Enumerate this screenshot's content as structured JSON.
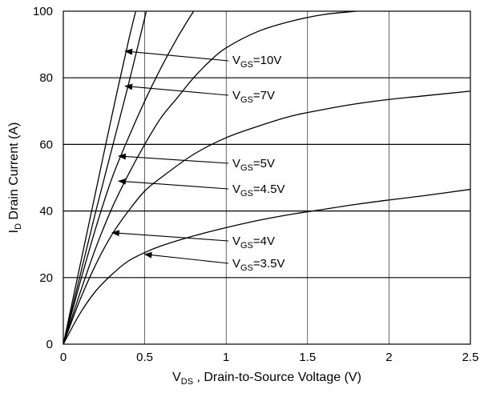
{
  "chart_data": {
    "type": "line",
    "xlabel": {
      "main": "V",
      "sub": "DS",
      "rest": " , Drain-to-Source  Voltage (V)"
    },
    "ylabel": {
      "main": "I",
      "sub": "D",
      "rest": " Drain Current  (A)"
    },
    "xlim": [
      0,
      2.5
    ],
    "ylim": [
      0,
      100
    ],
    "x_ticks": [
      0,
      0.5,
      1,
      1.5,
      2,
      2.5
    ],
    "x_tick_labels": [
      "0",
      "0.5",
      "1",
      "1.5",
      "2",
      "2.5"
    ],
    "y_ticks": [
      0,
      20,
      40,
      60,
      80,
      100
    ],
    "y_tick_labels": [
      "0",
      "20",
      "40",
      "60",
      "80",
      "100"
    ],
    "grid": true,
    "series": [
      {
        "name": "VGS=10V",
        "x": [
          0,
          0.1,
          0.2,
          0.3,
          0.4,
          0.45
        ],
        "y": [
          0,
          23,
          46,
          69,
          91,
          101
        ]
      },
      {
        "name": "VGS=7V",
        "x": [
          0,
          0.1,
          0.2,
          0.3,
          0.4,
          0.5,
          0.51
        ],
        "y": [
          0,
          20,
          40,
          59,
          78,
          98,
          100
        ]
      },
      {
        "name": "VGS=5V",
        "x": [
          0,
          0.1,
          0.2,
          0.3,
          0.4,
          0.5,
          0.6,
          0.7,
          0.8
        ],
        "y": [
          0,
          18,
          35,
          50,
          62,
          73,
          83,
          92,
          100
        ]
      },
      {
        "name": "VGS=4.5V",
        "x": [
          0,
          0.1,
          0.2,
          0.3,
          0.4,
          0.5,
          0.6,
          0.7,
          0.8,
          0.9,
          1.0,
          1.2,
          1.4,
          1.6,
          1.8
        ],
        "y": [
          0,
          15,
          29,
          41,
          51,
          60,
          68,
          74,
          80,
          85,
          89,
          94,
          97,
          99,
          100
        ]
      },
      {
        "name": "VGS=4V",
        "x": [
          0,
          0.1,
          0.2,
          0.3,
          0.4,
          0.5,
          0.6,
          0.8,
          1.0,
          1.2,
          1.4,
          1.6,
          1.8,
          2.0,
          2.2,
          2.5
        ],
        "y": [
          0,
          13,
          24,
          33,
          40,
          46,
          50,
          57,
          62,
          65.5,
          68.5,
          70.5,
          72.2,
          73.5,
          74.5,
          76
        ]
      },
      {
        "name": "VGS=3.5V",
        "x": [
          0,
          0.1,
          0.2,
          0.3,
          0.4,
          0.5,
          0.6,
          0.8,
          1.0,
          1.2,
          1.4,
          1.6,
          1.8,
          2.0,
          2.2,
          2.5
        ],
        "y": [
          0,
          9,
          16,
          21,
          25,
          27.5,
          29.5,
          32.5,
          35,
          37.2,
          39,
          40.5,
          42,
          43.3,
          44.5,
          46.5
        ]
      }
    ],
    "annotations": [
      {
        "sym": "V",
        "sub": "GS",
        "val": "=10V",
        "target": [
          0.38,
          88
        ]
      },
      {
        "sym": "V",
        "sub": "GS",
        "val": "=7V",
        "target": [
          0.38,
          77.5
        ]
      },
      {
        "sym": "V",
        "sub": "GS",
        "val": "=5V",
        "target": [
          0.34,
          56.5
        ]
      },
      {
        "sym": "V",
        "sub": "GS",
        "val": "=4.5V",
        "target": [
          0.34,
          49
        ]
      },
      {
        "sym": "V",
        "sub": "GS",
        "val": "=4V",
        "target": [
          0.3,
          33.5
        ]
      },
      {
        "sym": "V",
        "sub": "GS",
        "val": "=3.5V",
        "target": [
          0.5,
          27
        ]
      }
    ],
    "colors": {
      "line": "#000000",
      "grid": "#000000",
      "background": "#ffffff"
    }
  }
}
